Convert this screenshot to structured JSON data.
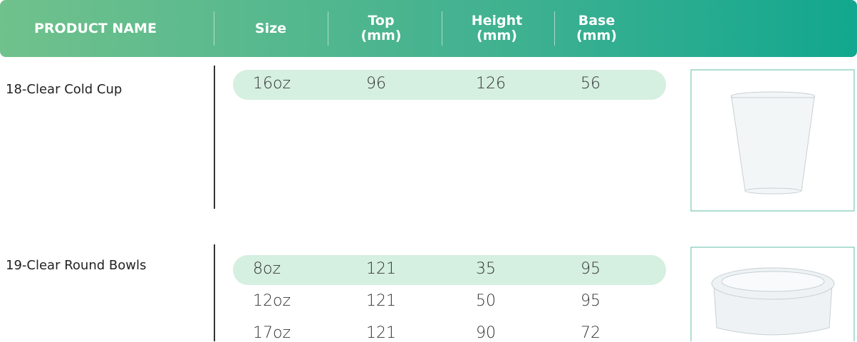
{
  "header": {
    "columns": [
      {
        "lines": [
          "PRODUCT NAME"
        ]
      },
      {
        "lines": [
          "Size"
        ]
      },
      {
        "lines": [
          "Top",
          "(mm)"
        ]
      },
      {
        "lines": [
          "Height",
          "(mm)"
        ]
      },
      {
        "lines": [
          "Base",
          "(mm)"
        ]
      }
    ]
  },
  "products": [
    {
      "name": "18-Clear Cold Cup",
      "rows": [
        [
          "16oz",
          "96",
          "126",
          "56"
        ]
      ]
    },
    {
      "name": "19-Clear Round Bowls",
      "rows": [
        [
          "8oz",
          "121",
          "35",
          "95"
        ],
        [
          "12oz",
          "121",
          "50",
          "95"
        ],
        [
          "17oz",
          "121",
          "90",
          "72"
        ]
      ]
    }
  ]
}
